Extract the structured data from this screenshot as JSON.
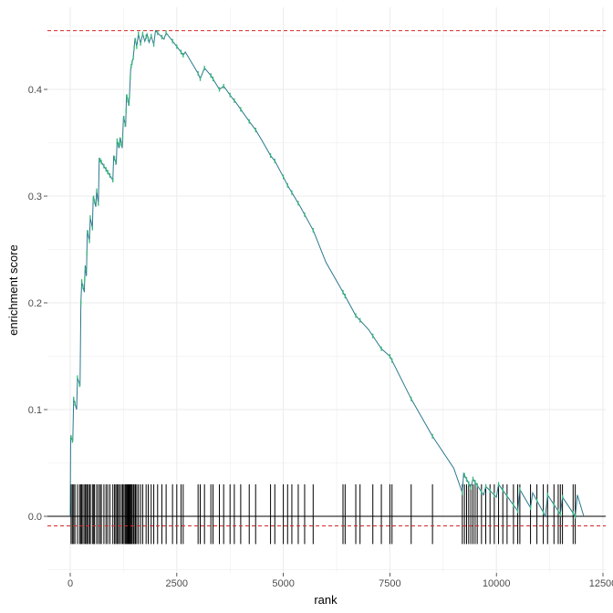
{
  "chart_data": {
    "type": "line",
    "title": "",
    "xlabel": "rank",
    "ylabel": "enrichment score",
    "xlim": [
      -1000,
      12800
    ],
    "ylim": [
      -0.065,
      0.47
    ],
    "x_ticks": [
      0,
      2500,
      5000,
      7500,
      10000,
      12500
    ],
    "x_tick_labels": [
      "0",
      "2500",
      "5000",
      "7500",
      "10000",
      "12500"
    ],
    "y_ticks": [
      0.0,
      0.1,
      0.2,
      0.3,
      0.4
    ],
    "y_tick_labels": [
      "0.0",
      "0.1",
      "0.2",
      "0.3",
      "0.4"
    ],
    "grid": true,
    "legend": "none",
    "max_score_line": 0.455,
    "min_score_line": -0.009,
    "zero_line": 0.0,
    "colors": {
      "curve": "#2a788e",
      "hit_marker": "#35b779",
      "threshold": "#d62728",
      "rug": "#000000",
      "zero_line": "#000000",
      "grid": "#ebebeb"
    },
    "series": [
      {
        "values": [
          [
            0,
            0.0
          ],
          [
            10,
            0.075
          ],
          [
            60,
            0.07
          ],
          [
            80,
            0.11
          ],
          [
            150,
            0.1
          ],
          [
            170,
            0.13
          ],
          [
            230,
            0.122
          ],
          [
            250,
            0.2
          ],
          [
            270,
            0.22
          ],
          [
            330,
            0.21
          ],
          [
            350,
            0.235
          ],
          [
            380,
            0.225
          ],
          [
            400,
            0.268
          ],
          [
            450,
            0.258
          ],
          [
            470,
            0.28
          ],
          [
            520,
            0.27
          ],
          [
            540,
            0.3
          ],
          [
            600,
            0.29
          ],
          [
            620,
            0.305
          ],
          [
            660,
            0.293
          ],
          [
            680,
            0.335
          ],
          [
            1000,
            0.315
          ],
          [
            1020,
            0.338
          ],
          [
            1080,
            0.33
          ],
          [
            1100,
            0.352
          ],
          [
            1150,
            0.345
          ],
          [
            1170,
            0.355
          ],
          [
            1220,
            0.345
          ],
          [
            1250,
            0.375
          ],
          [
            1300,
            0.365
          ],
          [
            1320,
            0.395
          ],
          [
            1380,
            0.385
          ],
          [
            1420,
            0.42
          ],
          [
            1480,
            0.43
          ],
          [
            1520,
            0.448
          ],
          [
            1560,
            0.44
          ],
          [
            1600,
            0.452
          ],
          [
            1650,
            0.443
          ],
          [
            1700,
            0.452
          ],
          [
            1750,
            0.445
          ],
          [
            1800,
            0.452
          ],
          [
            1850,
            0.444
          ],
          [
            1900,
            0.45
          ],
          [
            1960,
            0.442
          ],
          [
            2000,
            0.455
          ],
          [
            2200,
            0.447
          ],
          [
            2250,
            0.453
          ],
          [
            2600,
            0.435
          ],
          [
            2650,
            0.432
          ],
          [
            2700,
            0.435
          ],
          [
            3000,
            0.415
          ],
          [
            3050,
            0.41
          ],
          [
            3150,
            0.42
          ],
          [
            3300,
            0.413
          ],
          [
            3500,
            0.4
          ],
          [
            3600,
            0.403
          ],
          [
            3800,
            0.392
          ],
          [
            3900,
            0.387
          ],
          [
            4200,
            0.37
          ],
          [
            4350,
            0.362
          ],
          [
            4500,
            0.352
          ],
          [
            4700,
            0.338
          ],
          [
            4800,
            0.333
          ],
          [
            5000,
            0.318
          ],
          [
            5100,
            0.31
          ],
          [
            5400,
            0.29
          ],
          [
            5700,
            0.268
          ],
          [
            6000,
            0.238
          ],
          [
            6400,
            0.21
          ],
          [
            6700,
            0.188
          ],
          [
            7000,
            0.175
          ],
          [
            7300,
            0.157
          ],
          [
            7500,
            0.15
          ],
          [
            8000,
            0.11
          ],
          [
            8500,
            0.075
          ],
          [
            9000,
            0.045
          ],
          [
            9200,
            0.022
          ],
          [
            9230,
            0.04
          ],
          [
            9400,
            0.027
          ],
          [
            9450,
            0.035
          ],
          [
            9700,
            0.02
          ],
          [
            9750,
            0.028
          ],
          [
            10000,
            0.018
          ],
          [
            10050,
            0.03
          ],
          [
            10500,
            0.005
          ],
          [
            10550,
            0.025
          ],
          [
            10800,
            0.008
          ],
          [
            10850,
            0.022
          ],
          [
            11150,
            0.0
          ],
          [
            11200,
            0.02
          ],
          [
            11500,
            0.002
          ],
          [
            11550,
            0.018
          ],
          [
            11850,
            0.0
          ],
          [
            11900,
            0.02
          ],
          [
            12050,
            0.0
          ]
        ]
      }
    ],
    "hits": [
      20,
      50,
      80,
      110,
      170,
      220,
      250,
      270,
      300,
      340,
      360,
      390,
      410,
      450,
      470,
      520,
      550,
      570,
      620,
      660,
      700,
      730,
      790,
      840,
      880,
      930,
      1000,
      1040,
      1070,
      1100,
      1130,
      1160,
      1200,
      1230,
      1260,
      1290,
      1310,
      1330,
      1350,
      1370,
      1390,
      1410,
      1430,
      1450,
      1480,
      1500,
      1530,
      1560,
      1600,
      1650,
      1700,
      1780,
      1830,
      1900,
      1960,
      2050,
      2150,
      2250,
      2400,
      2500,
      2600,
      2650,
      3000,
      3050,
      3150,
      3300,
      3350,
      3500,
      3600,
      3750,
      3850,
      4000,
      4200,
      4350,
      4700,
      4800,
      5000,
      5100,
      5200,
      5350,
      5500,
      5700,
      6400,
      6450,
      6700,
      6800,
      7100,
      7300,
      7500,
      7550,
      8000,
      8500,
      9200,
      9250,
      9300,
      9350,
      9400,
      9450,
      9500,
      9550,
      9650,
      9750,
      9850,
      9950,
      10050,
      10150,
      10250,
      10400,
      10500,
      10550,
      10800,
      10950,
      11100,
      11200,
      11350,
      11450,
      11500,
      11550,
      11800,
      11850
    ]
  }
}
